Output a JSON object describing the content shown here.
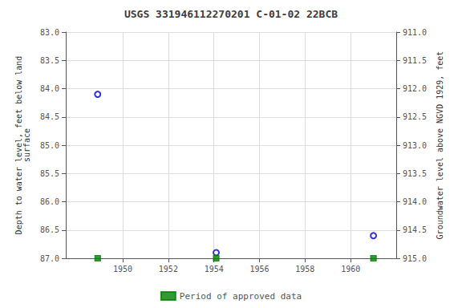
{
  "chart_data": {
    "type": "scatter",
    "title": "USGS 331946112270201 C-01-02 22BCB",
    "ylabel": "Depth to water level, feet below land\nsurface",
    "y2label": "Groundwater level above NGVD 1929, feet",
    "x": [
      1948.9,
      1954.1,
      1961.0
    ],
    "series": [
      {
        "color": "#0000cc",
        "marker": "open_circle",
        "values": [
          84.1,
          86.9,
          86.6
        ]
      },
      {
        "name": "Period of approved data",
        "color": "#008000",
        "marker": "square",
        "values": [
          87.0,
          87.0,
          87.0
        ]
      }
    ],
    "xlim": [
      1947.5,
      1962.0
    ],
    "xticks": [
      1950,
      1952,
      1954,
      1956,
      1958,
      1960
    ],
    "ylim": [
      87.0,
      83.0
    ],
    "yticks": [
      {
        "value": 83,
        "label": "83.0"
      },
      83.5,
      {
        "value": 84,
        "label": "84.0"
      },
      84.5,
      {
        "value": 85,
        "label": "85.0"
      },
      85.5,
      {
        "value": 86,
        "label": "86.0"
      },
      86.5,
      {
        "value": 87,
        "label": "87.0"
      }
    ],
    "y2lim": [
      915.0,
      911.0
    ],
    "y2ticks": [
      {
        "value": 915,
        "label": "915.0"
      },
      914.5,
      {
        "value": 914,
        "label": "914.0"
      },
      913.5,
      {
        "value": 913,
        "label": "913.0"
      },
      912.5,
      {
        "value": 912,
        "label": "912.0"
      },
      911.5,
      {
        "value": 911,
        "label": "911.0"
      }
    ],
    "grid": true,
    "legend": "bottom"
  }
}
